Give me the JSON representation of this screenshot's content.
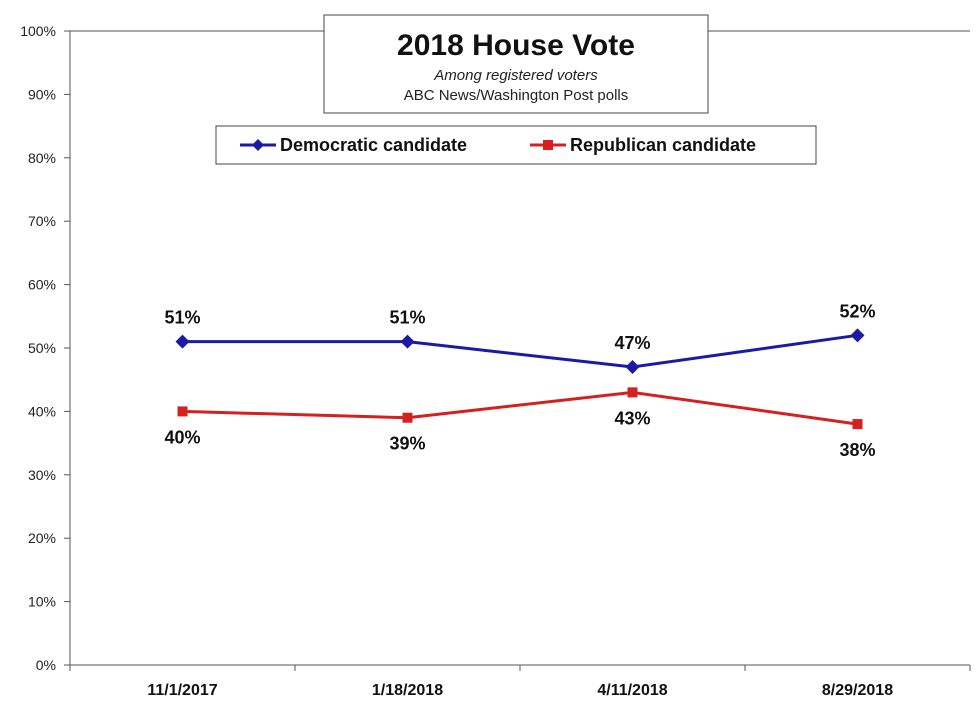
{
  "chart_data": {
    "type": "line",
    "title": "2018 House Vote",
    "subtitle": "Among registered voters",
    "subtitle2": "ABC News/Washington  Post polls",
    "categories": [
      "11/1/2017",
      "1/18/2018",
      "4/11/2018",
      "8/29/2018"
    ],
    "ylim": [
      0,
      100
    ],
    "yticks": [
      0,
      10,
      20,
      30,
      40,
      50,
      60,
      70,
      80,
      90,
      100
    ],
    "ytick_labels": [
      "0%",
      "10%",
      "20%",
      "30%",
      "40%",
      "50%",
      "60%",
      "70%",
      "80%",
      "90%",
      "100%"
    ],
    "grid": false,
    "legend_position": "top-center",
    "series": [
      {
        "name": "Democratic candidate",
        "values": [
          51,
          51,
          47,
          52
        ],
        "labels": [
          "51%",
          "51%",
          "47%",
          "52%"
        ],
        "color": "#1a1aa6",
        "marker": "diamond",
        "label_position": "above"
      },
      {
        "name": "Republican candidate",
        "values": [
          40,
          39,
          43,
          38
        ],
        "labels": [
          "40%",
          "39%",
          "43%",
          "38%"
        ],
        "color": "#d42020",
        "marker": "square",
        "label_position": "below"
      }
    ]
  }
}
